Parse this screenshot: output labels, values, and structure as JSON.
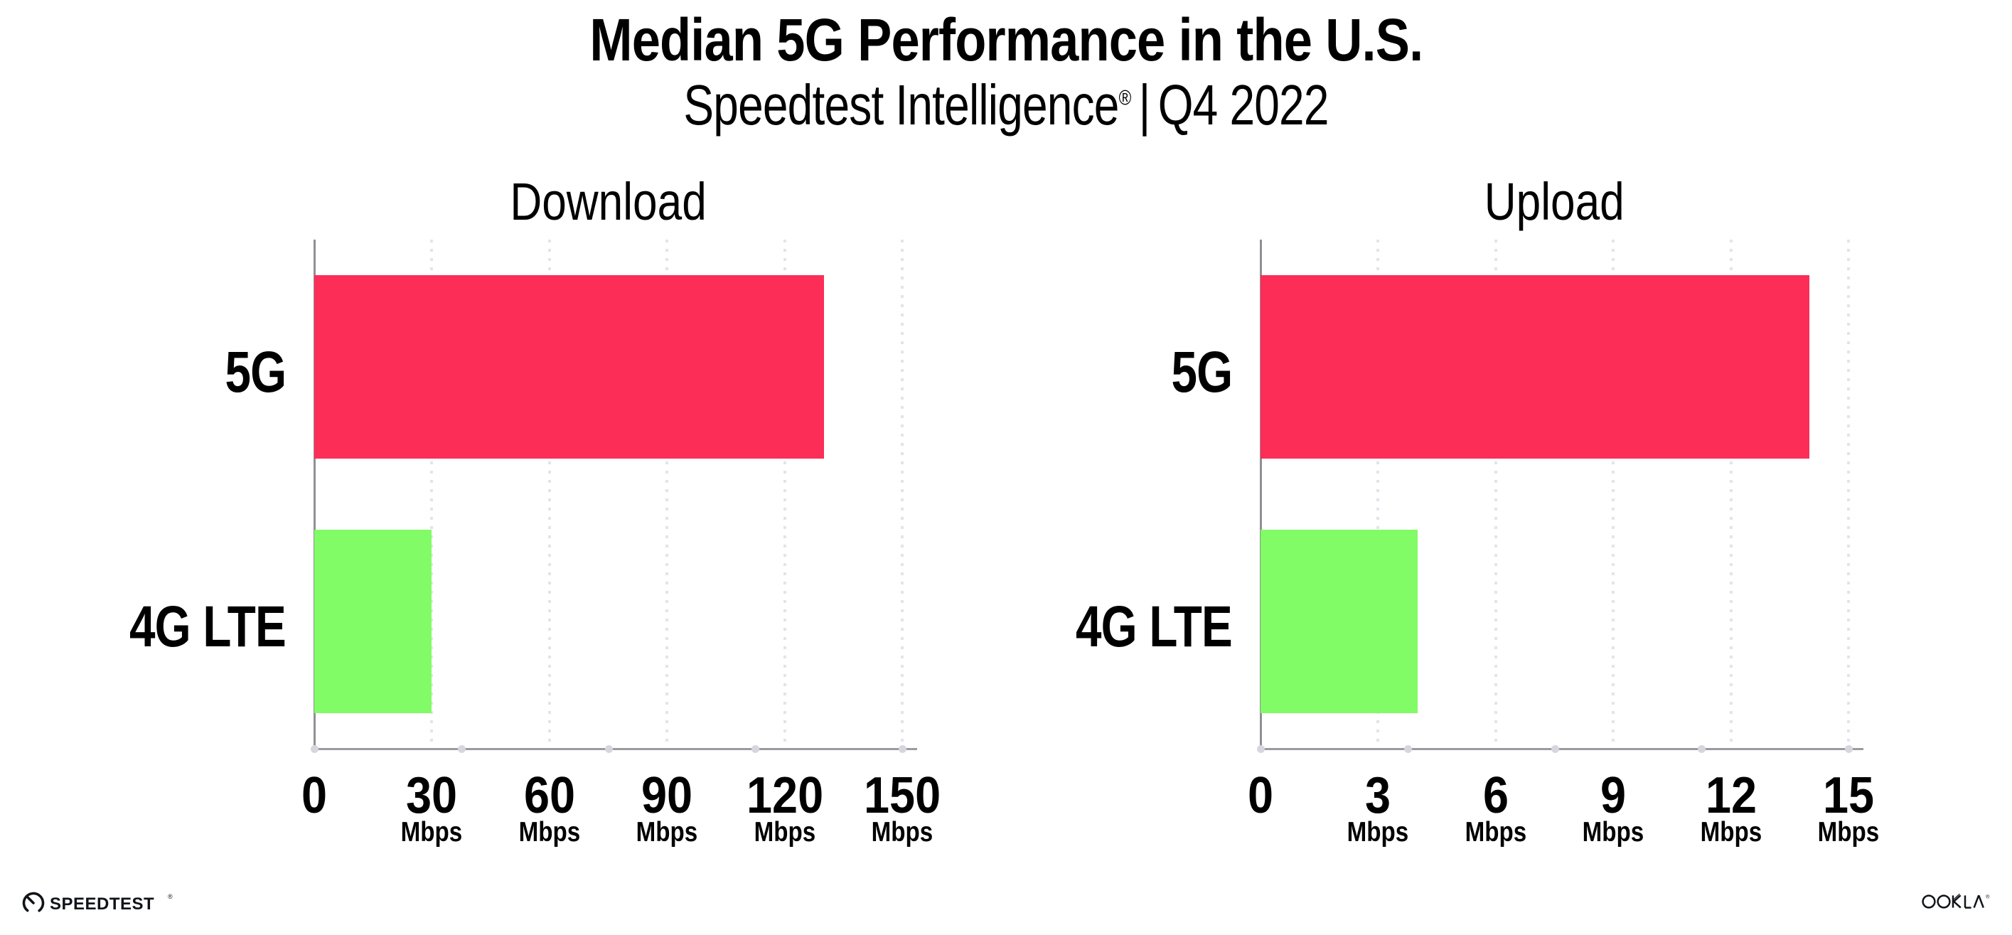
{
  "header": {
    "title": "Median 5G Performance in the U.S.",
    "subtitle_brand": "Speedtest Intelligence",
    "subtitle_reg": "®",
    "subtitle_separator": "|",
    "subtitle_period": "Q4 2022"
  },
  "colors": {
    "bar_5g": "#FC2D57",
    "bar_4g_lte": "#81FB66",
    "axis_line": "#9A9AA1",
    "spine": "#8F8F96",
    "axis_dot": "#D6D6DE",
    "grid_dot": "#E3E3EB",
    "text": "#000000"
  },
  "chart_data": [
    {
      "type": "bar",
      "orientation": "horizontal",
      "title": "Download",
      "categories": [
        "5G",
        "4G LTE"
      ],
      "values": [
        130,
        30
      ],
      "unit": "Mbps",
      "xlim": [
        0,
        150
      ],
      "xticks": [
        0,
        30,
        60,
        90,
        120,
        150
      ],
      "tick_unit_label": "Mbps",
      "bar_colors": [
        "#FC2D57",
        "#81FB66"
      ],
      "grid": "dotted-vertical",
      "legend": "none"
    },
    {
      "type": "bar",
      "orientation": "horizontal",
      "title": "Upload",
      "categories": [
        "5G",
        "4G LTE"
      ],
      "values": [
        14,
        4
      ],
      "unit": "Mbps",
      "xlim": [
        0,
        15
      ],
      "xticks": [
        0,
        3,
        6,
        9,
        12,
        15
      ],
      "tick_unit_label": "Mbps",
      "bar_colors": [
        "#FC2D57",
        "#81FB66"
      ],
      "grid": "dotted-vertical",
      "legend": "none"
    }
  ],
  "footer": {
    "speedtest_logo_text": "SPEEDTEST",
    "speedtest_logo_mark": "®",
    "ookla_logo_text": "OOKLA",
    "ookla_logo_mark": "®"
  }
}
